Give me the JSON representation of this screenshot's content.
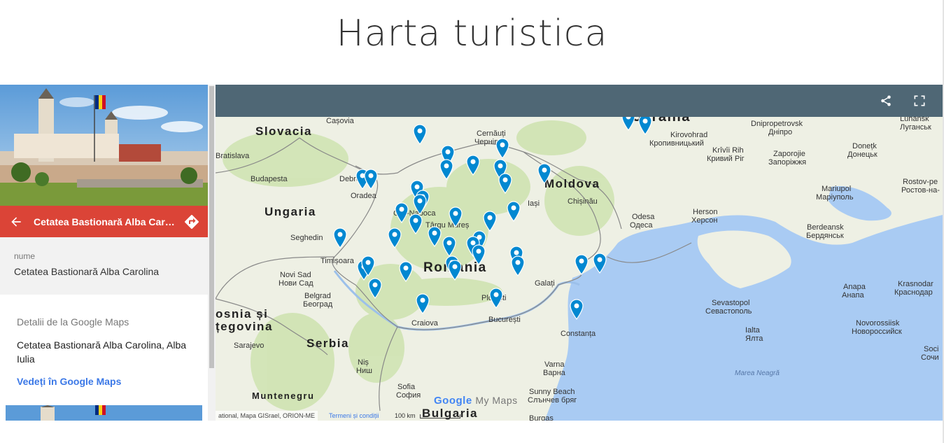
{
  "page": {
    "title": "Harta turistica"
  },
  "sidebar": {
    "place_title": "Cetatea Bastionară Alba Carol...",
    "field_label": "nume",
    "field_value": "Cetatea Bastionară Alba Carolina",
    "gm_heading": "Detalii de la Google Maps",
    "gm_address": "Cetatea Bastionară Alba Carolina, Alba Iulia",
    "gm_link": "Vedeți în Google Maps"
  },
  "map": {
    "countries": {
      "slovacia": "Slovacia",
      "ungaria": "Ungaria",
      "romania": "Romania",
      "moldova": "Moldova",
      "serbia": "Serbia",
      "bosnia1": "osnia și",
      "bosnia2": "țegovina",
      "muntenegru": "Muntenegru",
      "bulgaria": "Bulgaria",
      "ucraina": "Ucraina"
    },
    "cities": {
      "kosice": "Cașovia",
      "bratislava": "Bratislava",
      "budapesta": "Budapesta",
      "debretin": "Debreţin",
      "oradea": "Oradea",
      "cluj": "Cluj-Napoca",
      "targu": "Târgu Mureș",
      "seghedin": "Seghedin",
      "timisoara": "Timișoara",
      "novisad": "Novi Sad",
      "novisad_cyr": "Нови Сад",
      "belgrad": "Belgrad",
      "belgrad_cyr": "Београд",
      "sarajevo": "Sarajevo",
      "nis": "Niș",
      "nis_cyr": "Ниш",
      "craiova": "Craiova",
      "bucuresti": "București",
      "ploiesti": "Ploiești",
      "galati": "Galați",
      "constanta": "Constanța",
      "chernivtsi": "Cernăuți",
      "chernivtsi_cyr": "Чернівці",
      "iasi": "Iași",
      "chisinau": "Chișinău",
      "odesa": "Odesa",
      "odesa_cyr": "Одеса",
      "kirovohrad": "Kirovohrad",
      "kirovohrad_cyr": "Кропивницький",
      "dnipro": "Dnipropetrovsk",
      "dnipro_cyr": "Дніпро",
      "kryvyi": "Krîvîi Rih",
      "kryvyi_cyr": "Кривий Ріг",
      "zaporizhzhia": "Zaporojie",
      "zaporizhzhia_cyr": "Запоріжжя",
      "donetsk": "Donețk",
      "donetsk_cyr": "Донецьк",
      "luhansk": "Luhansk",
      "luhansk_cyr": "Луганськ",
      "mariupol": "Mariupol",
      "mariupol_cyr": "Маріуполь",
      "rostov": "Rostov-pe",
      "rostov_cyr": "Ростов-на-",
      "herson": "Herson",
      "herson_cyr": "Херсон",
      "berdeansk": "Berdeansk",
      "berdeansk_cyr": "Бердянськ",
      "sevastopol": "Sevastopol",
      "sevastopol_cyr": "Севастополь",
      "ialta": "Ialta",
      "ialta_cyr": "Ялта",
      "anapa": "Anapa",
      "anapa_cyr": "Анапа",
      "novorossiisk": "Novorossiisk",
      "novorossiisk_cyr": "Новороссийск",
      "krasnodar": "Krasnodar",
      "krasnodar_cyr": "Краснодар",
      "soci": "Soci",
      "soci_cyr": "Сочи",
      "varna": "Varna",
      "varna_cyr": "Варна",
      "sunny": "Sunny Beach",
      "sunny_cyr": "Слънчев бряг",
      "sofia": "Sofia",
      "sofia_cyr": "София",
      "burgas": "Burgas"
    },
    "sea": "Marea Neagră",
    "attribution": "ational, Mapa GISrael, ORION-ME",
    "terms": "Termeni și condiții",
    "scale": "100 km",
    "logo_google": "Google",
    "logo_mymaps": "My Maps",
    "pin_color": "#0288d1",
    "pins": [
      "pin",
      "pin",
      "pin",
      "pin",
      "pin",
      "pin",
      "pin",
      "pin",
      "pin",
      "pin",
      "pin",
      "pin",
      "pin",
      "pin",
      "pin",
      "pin",
      "pin",
      "pin",
      "pin",
      "pin",
      "pin",
      "pin",
      "pin",
      "pin",
      "pin",
      "pin",
      "pin",
      "pin",
      "pin",
      "pin",
      "pin",
      "pin",
      "pin",
      "pin",
      "pin",
      "pin",
      "pin",
      "pin",
      "pin",
      "pin",
      "pin",
      "pin"
    ]
  },
  "colors": {
    "accent": "#db4437",
    "header": "#4f6775",
    "link": "#3b78e7",
    "water": "#a9cbf3"
  }
}
